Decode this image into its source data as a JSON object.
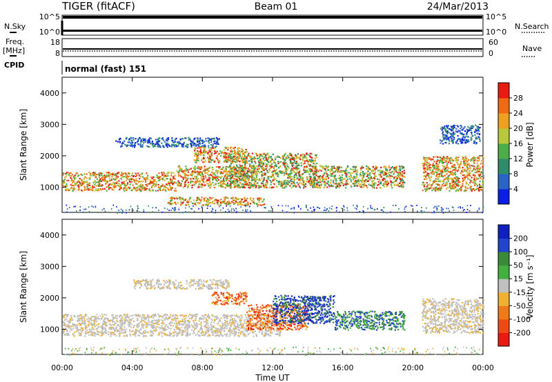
{
  "header": {
    "title_left": "TIGER (fitACF)",
    "title_center": "Beam 01",
    "title_right": "24/Mar/2013"
  },
  "status_panels": {
    "nsky": {
      "label": "N.Sky",
      "ticks": [
        "10^5",
        "10^0"
      ],
      "right_label": "N.Search",
      "right_ticks": [
        "10^5",
        "10^0"
      ]
    },
    "freq": {
      "label": "Freq.",
      "unit": "[MHz]",
      "ticks": [
        "18",
        "8"
      ],
      "right_label": "Nave",
      "right_ticks": [
        "60",
        "0"
      ]
    },
    "cpid": {
      "label": "CPID",
      "value": "normal (fast) 151"
    }
  },
  "chart_data": [
    {
      "type": "heatmap",
      "name": "power",
      "ylabel": "Slant Range [km]",
      "ylim": [
        200,
        4500
      ],
      "xlim": [
        0,
        24
      ],
      "y_ticks": [
        1000,
        2000,
        3000,
        4000
      ],
      "colorbar": {
        "label": "Power [dB]",
        "ticks": [
          "4",
          "8",
          "12",
          "16",
          "20",
          "24",
          "28"
        ],
        "colors": [
          "#0a1ee6",
          "#2a64c8",
          "#2f8c6a",
          "#4cae48",
          "#b8c83a",
          "#f0a020",
          "#f06a14",
          "#e81a12"
        ]
      },
      "patches": [
        {
          "t0": 0.0,
          "t1": 6.5,
          "r0": 900,
          "r1": 1500,
          "level": "high"
        },
        {
          "t0": 6.5,
          "t1": 11.0,
          "r0": 1000,
          "r1": 1700,
          "level": "high"
        },
        {
          "t0": 9.5,
          "t1": 14.5,
          "r0": 1000,
          "r1": 2100,
          "level": "mid"
        },
        {
          "t0": 14.0,
          "t1": 19.5,
          "r0": 1000,
          "r1": 1700,
          "level": "mid"
        },
        {
          "t0": 6.0,
          "t1": 11.5,
          "r0": 450,
          "r1": 700,
          "level": "high"
        },
        {
          "t0": 3.0,
          "t1": 9.0,
          "r0": 2300,
          "r1": 2600,
          "level": "low"
        },
        {
          "t0": 7.5,
          "t1": 10.5,
          "r0": 1800,
          "r1": 2300,
          "level": "high"
        },
        {
          "t0": 20.5,
          "t1": 24.0,
          "r0": 900,
          "r1": 2000,
          "level": "high"
        },
        {
          "t0": 21.5,
          "t1": 23.8,
          "r0": 2400,
          "r1": 3000,
          "level": "low"
        }
      ]
    },
    {
      "type": "heatmap",
      "name": "velocity",
      "ylabel": "Slant Range [km]",
      "xlabel": "Time UT",
      "ylim": [
        200,
        4500
      ],
      "xlim": [
        0,
        24
      ],
      "y_ticks": [
        1000,
        2000,
        3000,
        4000
      ],
      "x_ticks": [
        "00:00",
        "04:00",
        "08:00",
        "12:00",
        "16:00",
        "20:00",
        "00:00"
      ],
      "colorbar": {
        "label": "Velocity [m s⁻¹]",
        "ticks": [
          "-200",
          "-100",
          "-50",
          "-15",
          "15",
          "50",
          "100",
          "200"
        ],
        "colors": [
          "#e81a12",
          "#f04a14",
          "#f07a18",
          "#f0b030",
          "#c0c0c0",
          "#40b040",
          "#3a8a3a",
          "#2244cc",
          "#1020c0"
        ]
      },
      "patches": [
        {
          "t0": 0.0,
          "t1": 9.5,
          "r0": 800,
          "r1": 1500,
          "level": "gray"
        },
        {
          "t0": 9.5,
          "t1": 12.5,
          "r0": 800,
          "r1": 1500,
          "level": "gray"
        },
        {
          "t0": 10.5,
          "t1": 14.0,
          "r0": 1000,
          "r1": 1800,
          "level": "red"
        },
        {
          "t0": 8.5,
          "t1": 10.5,
          "r0": 1800,
          "r1": 2200,
          "level": "red"
        },
        {
          "t0": 12.0,
          "t1": 15.5,
          "r0": 1200,
          "r1": 2100,
          "level": "blue"
        },
        {
          "t0": 15.5,
          "t1": 19.5,
          "r0": 1000,
          "r1": 1600,
          "level": "green"
        },
        {
          "t0": 20.5,
          "t1": 24.0,
          "r0": 900,
          "r1": 2000,
          "level": "gray"
        },
        {
          "t0": 4.0,
          "t1": 9.5,
          "r0": 2300,
          "r1": 2600,
          "level": "gray"
        }
      ]
    }
  ]
}
